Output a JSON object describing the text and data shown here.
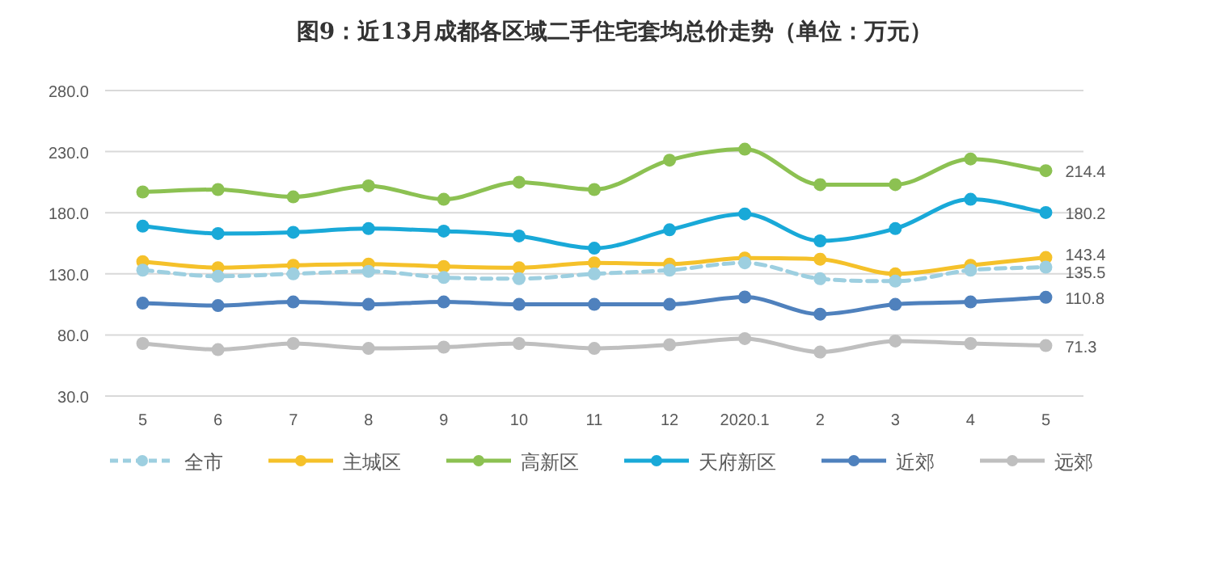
{
  "chart_data": {
    "type": "line",
    "title": "图9：近13月成都各区域二手住宅套均总价走势（单位：万元）",
    "categories": [
      "5",
      "6",
      "7",
      "8",
      "9",
      "10",
      "11",
      "12",
      "2020.1",
      "2",
      "3",
      "4",
      "5"
    ],
    "ylim": [
      30,
      280
    ],
    "yticks": [
      {
        "value": 30,
        "label": "30.0"
      },
      {
        "value": 80,
        "label": "80.0"
      },
      {
        "value": 130,
        "label": "130.0"
      },
      {
        "value": 180,
        "label": "180.0"
      },
      {
        "value": 230,
        "label": "230.0"
      },
      {
        "value": 280,
        "label": "280.0"
      }
    ],
    "grid": "y",
    "legend": "bottom",
    "marker": "circle",
    "series": [
      {
        "name": "全市",
        "color": "#9dcfe0",
        "line_style": "dashed",
        "values": [
          133,
          128,
          130,
          132,
          127,
          126,
          130,
          133,
          139,
          126,
          124,
          133,
          135.5
        ],
        "value_labels": [
          null,
          null,
          null,
          null,
          null,
          null,
          null,
          null,
          null,
          null,
          null,
          null,
          "135.5"
        ]
      },
      {
        "name": "主城区",
        "color": "#f5c12a",
        "line_style": "solid",
        "values": [
          140,
          135,
          137,
          138,
          136,
          135,
          139,
          138,
          143,
          142,
          130,
          137,
          143.4
        ],
        "value_labels": [
          null,
          null,
          null,
          null,
          null,
          null,
          null,
          null,
          null,
          null,
          null,
          null,
          "143.4"
        ]
      },
      {
        "name": "高新区",
        "color": "#8cc152",
        "line_style": "solid",
        "values": [
          197,
          199,
          193,
          202,
          191,
          205,
          199,
          223,
          232,
          203,
          203,
          224,
          214.4
        ],
        "value_labels": [
          null,
          null,
          null,
          null,
          null,
          null,
          null,
          null,
          null,
          null,
          null,
          null,
          "214.4"
        ]
      },
      {
        "name": "天府新区",
        "color": "#19a9d8",
        "line_style": "solid",
        "values": [
          169,
          163,
          164,
          167,
          165,
          161,
          151,
          166,
          179,
          157,
          167,
          191,
          180.2
        ],
        "value_labels": [
          null,
          null,
          null,
          null,
          null,
          null,
          null,
          null,
          null,
          null,
          null,
          null,
          "180.2"
        ]
      },
      {
        "name": "近郊",
        "color": "#4f81bd",
        "line_style": "solid",
        "values": [
          106,
          104,
          107,
          105,
          107,
          105,
          105,
          105,
          111,
          97,
          105,
          107,
          110.8
        ],
        "value_labels": [
          null,
          null,
          null,
          null,
          null,
          null,
          null,
          null,
          null,
          null,
          null,
          null,
          "110.8"
        ]
      },
      {
        "name": "远郊",
        "color": "#bfbfbf",
        "line_style": "solid",
        "values": [
          73,
          68,
          73,
          69,
          70,
          73,
          69,
          72,
          77,
          66,
          75,
          73,
          71.3
        ],
        "value_labels": [
          null,
          null,
          null,
          null,
          null,
          null,
          null,
          null,
          null,
          null,
          null,
          null,
          "71.3"
        ]
      }
    ]
  }
}
